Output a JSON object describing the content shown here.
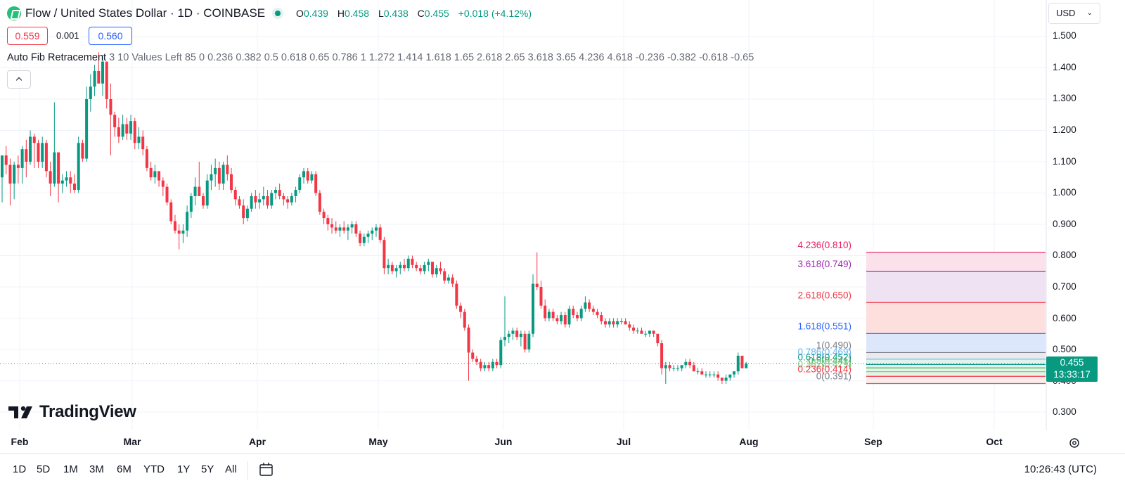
{
  "header": {
    "title": "Flow / United States Dollar · 1D · COINBASE",
    "ohlc": {
      "o_label": "O",
      "o": "0.439",
      "h_label": "H",
      "h": "0.458",
      "l_label": "L",
      "l": "0.438",
      "c_label": "C",
      "c": "0.455",
      "change": "+0.018 (+4.12%)"
    }
  },
  "price_boxes": {
    "bid": "0.559",
    "spread": "0.001",
    "ask": "0.560"
  },
  "indicator": {
    "name": "Auto Fib Retracement",
    "settings": "3 10 Values Left 85 0 0.236 0.382 0.5 0.618 0.65 0.786 1 1.272 1.414 1.618 1.65 2.618 2.65 3.618 3.65 4.236 4.618 -0.236 -0.382 -0.618 -0.65"
  },
  "currency": {
    "label": "USD",
    "chevron": "chevron-down-icon"
  },
  "y_axis": {
    "ticks": [
      "1.500",
      "1.400",
      "1.300",
      "1.200",
      "1.100",
      "1.000",
      "0.900",
      "0.800",
      "0.700",
      "0.600",
      "0.500",
      "0.400",
      "0.300"
    ]
  },
  "x_axis": {
    "ticks": [
      "Feb",
      "Mar",
      "Apr",
      "May",
      "Jun",
      "Jul",
      "Aug",
      "Sep",
      "Oct"
    ]
  },
  "last_price": {
    "value": "0.455",
    "countdown": "13:33:17"
  },
  "fib_labels": {
    "l4236": "4.236(0.810)",
    "l3618": "3.618(0.749)",
    "l2618": "2.618(0.650)",
    "l1618": "1.618(0.551)",
    "l1": "1(0.490)",
    "l0786": "0.786(0.469)",
    "l0618": "0.618(0.452)",
    "l05": "0.5(0.441)",
    "l0382": "0.382(0.429)",
    "l0236": "0.236(0.414)",
    "l0": "0(0.391)"
  },
  "colors": {
    "up": "#089981",
    "down": "#f23645",
    "grid": "#f0f3fa"
  },
  "chart_data": {
    "type": "candlestick",
    "title": "Flow / United States Dollar · 1D · COINBASE",
    "ylim": [
      0.25,
      1.55
    ],
    "x_range": [
      "Jan 29",
      "Oct 19"
    ],
    "log_scale": false,
    "grid": true,
    "ohlc_daily": [
      [
        1.05,
        1.12,
        0.97,
        1.12
      ],
      [
        1.12,
        1.15,
        1.06,
        1.09
      ],
      [
        1.09,
        1.11,
        0.96,
        1.03
      ],
      [
        1.03,
        1.1,
        0.98,
        1.09
      ],
      [
        1.09,
        1.12,
        1.03,
        1.08
      ],
      [
        1.08,
        1.15,
        1.03,
        1.14
      ],
      [
        1.14,
        1.17,
        1.05,
        1.1
      ],
      [
        1.1,
        1.2,
        1.09,
        1.18
      ],
      [
        1.18,
        1.19,
        1.08,
        1.16
      ],
      [
        1.16,
        1.17,
        1.08,
        1.1
      ],
      [
        1.1,
        1.18,
        1.08,
        1.16
      ],
      [
        1.16,
        1.17,
        1.05,
        1.07
      ],
      [
        1.07,
        1.1,
        0.99,
        1.03
      ],
      [
        1.03,
        1.29,
        1.02,
        1.13
      ],
      [
        1.13,
        1.13,
        0.97,
        1.03
      ],
      [
        1.03,
        1.06,
        1.0,
        1.04
      ],
      [
        1.04,
        1.07,
        1.02,
        1.05
      ],
      [
        1.05,
        1.07,
        1.0,
        1.03
      ],
      [
        1.03,
        1.06,
        1.0,
        1.01
      ],
      [
        1.01,
        1.18,
        1.0,
        1.16
      ],
      [
        1.16,
        1.17,
        1.1,
        1.11
      ],
      [
        1.11,
        1.34,
        1.1,
        1.3
      ],
      [
        1.3,
        1.38,
        1.26,
        1.34
      ],
      [
        1.34,
        1.41,
        1.31,
        1.39
      ],
      [
        1.39,
        1.45,
        1.35,
        1.35
      ],
      [
        1.35,
        1.44,
        1.31,
        1.42
      ],
      [
        1.42,
        1.42,
        1.27,
        1.3
      ],
      [
        1.3,
        1.35,
        1.12,
        1.25
      ],
      [
        1.25,
        1.26,
        1.18,
        1.21
      ],
      [
        1.21,
        1.24,
        1.16,
        1.18
      ],
      [
        1.18,
        1.25,
        1.17,
        1.22
      ],
      [
        1.22,
        1.24,
        1.17,
        1.19
      ],
      [
        1.19,
        1.25,
        1.17,
        1.23
      ],
      [
        1.23,
        1.24,
        1.14,
        1.16
      ],
      [
        1.16,
        1.21,
        1.14,
        1.18
      ],
      [
        1.18,
        1.2,
        1.12,
        1.14
      ],
      [
        1.14,
        1.15,
        1.07,
        1.08
      ],
      [
        1.08,
        1.1,
        1.04,
        1.05
      ],
      [
        1.05,
        1.09,
        1.03,
        1.07
      ],
      [
        1.07,
        1.07,
        1.02,
        1.04
      ],
      [
        1.04,
        1.05,
        0.99,
        1.02
      ],
      [
        1.02,
        1.03,
        0.96,
        0.97
      ],
      [
        0.97,
        0.98,
        0.9,
        0.91
      ],
      [
        0.91,
        0.93,
        0.87,
        0.88
      ],
      [
        0.88,
        0.9,
        0.82,
        0.87
      ],
      [
        0.87,
        0.9,
        0.84,
        0.88
      ],
      [
        0.88,
        0.96,
        0.86,
        0.94
      ],
      [
        0.94,
        1.0,
        0.92,
        0.99
      ],
      [
        0.99,
        1.05,
        0.96,
        1.02
      ],
      [
        1.02,
        1.1,
        0.99,
        0.99
      ],
      [
        0.99,
        1.0,
        0.95,
        0.96
      ],
      [
        0.96,
        1.06,
        0.95,
        1.04
      ],
      [
        1.04,
        1.09,
        1.01,
        1.06
      ],
      [
        1.06,
        1.11,
        1.02,
        1.08
      ],
      [
        1.08,
        1.1,
        1.01,
        1.03
      ],
      [
        1.03,
        1.1,
        1.01,
        1.09
      ],
      [
        1.09,
        1.12,
        1.04,
        1.06
      ],
      [
        1.06,
        1.08,
        1.0,
        1.01
      ],
      [
        1.01,
        1.02,
        0.96,
        0.98
      ],
      [
        0.98,
        0.99,
        0.95,
        0.96
      ],
      [
        0.96,
        0.98,
        0.9,
        0.92
      ],
      [
        0.92,
        0.96,
        0.91,
        0.95
      ],
      [
        0.95,
        1.0,
        0.94,
        0.99
      ],
      [
        0.99,
        1.01,
        0.95,
        0.97
      ],
      [
        0.97,
        1.0,
        0.95,
        0.98
      ],
      [
        0.98,
        1.02,
        0.96,
        0.99
      ],
      [
        0.99,
        1.01,
        0.95,
        0.96
      ],
      [
        0.96,
        1.01,
        0.95,
        1.0
      ],
      [
        1.0,
        1.02,
        0.98,
        1.01
      ],
      [
        1.01,
        1.03,
        0.98,
        0.99
      ],
      [
        0.99,
        1.0,
        0.96,
        0.98
      ],
      [
        0.98,
        0.99,
        0.95,
        0.97
      ],
      [
        0.97,
        1.0,
        0.96,
        0.99
      ],
      [
        0.99,
        1.02,
        0.97,
        1.01
      ],
      [
        1.01,
        1.06,
        1.0,
        1.05
      ],
      [
        1.05,
        1.08,
        1.03,
        1.07
      ],
      [
        1.07,
        1.08,
        1.03,
        1.04
      ],
      [
        1.04,
        1.07,
        1.03,
        1.06
      ],
      [
        1.06,
        1.07,
        0.99,
        1.0
      ],
      [
        1.0,
        1.01,
        0.93,
        0.94
      ],
      [
        0.94,
        0.95,
        0.9,
        0.92
      ],
      [
        0.92,
        0.93,
        0.88,
        0.9
      ],
      [
        0.9,
        0.92,
        0.87,
        0.89
      ],
      [
        0.89,
        0.91,
        0.87,
        0.88
      ],
      [
        0.88,
        0.9,
        0.86,
        0.89
      ],
      [
        0.89,
        0.91,
        0.87,
        0.88
      ],
      [
        0.88,
        0.9,
        0.85,
        0.89
      ],
      [
        0.89,
        0.91,
        0.87,
        0.9
      ],
      [
        0.9,
        0.91,
        0.86,
        0.87
      ],
      [
        0.87,
        0.88,
        0.83,
        0.84
      ],
      [
        0.84,
        0.87,
        0.83,
        0.86
      ],
      [
        0.86,
        0.88,
        0.84,
        0.87
      ],
      [
        0.87,
        0.89,
        0.85,
        0.88
      ],
      [
        0.88,
        0.9,
        0.86,
        0.89
      ],
      [
        0.89,
        0.9,
        0.84,
        0.85
      ],
      [
        0.85,
        0.86,
        0.74,
        0.76
      ],
      [
        0.76,
        0.79,
        0.74,
        0.77
      ],
      [
        0.77,
        0.78,
        0.74,
        0.75
      ],
      [
        0.75,
        0.77,
        0.73,
        0.76
      ],
      [
        0.76,
        0.78,
        0.74,
        0.77
      ],
      [
        0.77,
        0.79,
        0.75,
        0.76
      ],
      [
        0.76,
        0.8,
        0.75,
        0.79
      ],
      [
        0.79,
        0.8,
        0.76,
        0.77
      ],
      [
        0.77,
        0.78,
        0.75,
        0.76
      ],
      [
        0.76,
        0.77,
        0.74,
        0.75
      ],
      [
        0.75,
        0.78,
        0.74,
        0.77
      ],
      [
        0.77,
        0.79,
        0.75,
        0.78
      ],
      [
        0.78,
        0.78,
        0.73,
        0.74
      ],
      [
        0.74,
        0.77,
        0.73,
        0.76
      ],
      [
        0.76,
        0.78,
        0.74,
        0.75
      ],
      [
        0.75,
        0.76,
        0.71,
        0.72
      ],
      [
        0.72,
        0.74,
        0.71,
        0.73
      ],
      [
        0.73,
        0.74,
        0.7,
        0.71
      ],
      [
        0.71,
        0.72,
        0.63,
        0.64
      ],
      [
        0.64,
        0.65,
        0.6,
        0.62
      ],
      [
        0.62,
        0.63,
        0.56,
        0.57
      ],
      [
        0.57,
        0.58,
        0.4,
        0.49
      ],
      [
        0.49,
        0.5,
        0.46,
        0.47
      ],
      [
        0.47,
        0.48,
        0.45,
        0.46
      ],
      [
        0.46,
        0.47,
        0.43,
        0.44
      ],
      [
        0.44,
        0.46,
        0.43,
        0.45
      ],
      [
        0.45,
        0.46,
        0.43,
        0.44
      ],
      [
        0.44,
        0.47,
        0.43,
        0.46
      ],
      [
        0.46,
        0.47,
        0.44,
        0.45
      ],
      [
        0.45,
        0.54,
        0.44,
        0.53
      ],
      [
        0.53,
        0.67,
        0.51,
        0.54
      ],
      [
        0.54,
        0.56,
        0.52,
        0.55
      ],
      [
        0.55,
        0.57,
        0.53,
        0.56
      ],
      [
        0.56,
        0.57,
        0.53,
        0.54
      ],
      [
        0.54,
        0.56,
        0.51,
        0.55
      ],
      [
        0.55,
        0.56,
        0.49,
        0.5
      ],
      [
        0.5,
        0.56,
        0.49,
        0.55
      ],
      [
        0.55,
        0.74,
        0.54,
        0.71
      ],
      [
        0.71,
        0.81,
        0.69,
        0.7
      ],
      [
        0.7,
        0.72,
        0.63,
        0.64
      ],
      [
        0.64,
        0.66,
        0.59,
        0.6
      ],
      [
        0.6,
        0.63,
        0.59,
        0.62
      ],
      [
        0.62,
        0.63,
        0.59,
        0.6
      ],
      [
        0.6,
        0.61,
        0.58,
        0.59
      ],
      [
        0.59,
        0.62,
        0.58,
        0.61
      ],
      [
        0.61,
        0.62,
        0.57,
        0.58
      ],
      [
        0.58,
        0.64,
        0.57,
        0.63
      ],
      [
        0.63,
        0.64,
        0.6,
        0.61
      ],
      [
        0.61,
        0.62,
        0.59,
        0.6
      ],
      [
        0.6,
        0.64,
        0.59,
        0.63
      ],
      [
        0.63,
        0.67,
        0.62,
        0.65
      ],
      [
        0.65,
        0.66,
        0.62,
        0.63
      ],
      [
        0.63,
        0.64,
        0.61,
        0.62
      ],
      [
        0.62,
        0.63,
        0.6,
        0.61
      ],
      [
        0.61,
        0.62,
        0.58,
        0.59
      ],
      [
        0.59,
        0.6,
        0.57,
        0.58
      ],
      [
        0.58,
        0.6,
        0.57,
        0.59
      ],
      [
        0.59,
        0.6,
        0.57,
        0.58
      ],
      [
        0.58,
        0.6,
        0.57,
        0.59
      ],
      [
        0.59,
        0.6,
        0.58,
        0.59
      ],
      [
        0.59,
        0.6,
        0.58,
        0.58
      ],
      [
        0.58,
        0.59,
        0.56,
        0.57
      ],
      [
        0.57,
        0.58,
        0.55,
        0.56
      ],
      [
        0.56,
        0.57,
        0.55,
        0.56
      ],
      [
        0.56,
        0.57,
        0.55,
        0.55
      ],
      [
        0.55,
        0.56,
        0.54,
        0.55
      ],
      [
        0.55,
        0.56,
        0.54,
        0.56
      ],
      [
        0.56,
        0.56,
        0.54,
        0.55
      ],
      [
        0.55,
        0.55,
        0.51,
        0.52
      ],
      [
        0.52,
        0.53,
        0.42,
        0.44
      ],
      [
        0.44,
        0.46,
        0.39,
        0.45
      ],
      [
        0.45,
        0.46,
        0.43,
        0.44
      ],
      [
        0.44,
        0.45,
        0.43,
        0.44
      ],
      [
        0.44,
        0.45,
        0.43,
        0.44
      ],
      [
        0.44,
        0.45,
        0.43,
        0.45
      ],
      [
        0.45,
        0.47,
        0.44,
        0.46
      ],
      [
        0.46,
        0.47,
        0.44,
        0.45
      ],
      [
        0.45,
        0.46,
        0.43,
        0.43
      ],
      [
        0.43,
        0.44,
        0.42,
        0.43
      ],
      [
        0.43,
        0.44,
        0.42,
        0.42
      ],
      [
        0.42,
        0.43,
        0.41,
        0.42
      ],
      [
        0.42,
        0.43,
        0.41,
        0.42
      ],
      [
        0.42,
        0.43,
        0.41,
        0.42
      ],
      [
        0.42,
        0.43,
        0.4,
        0.41
      ],
      [
        0.41,
        0.41,
        0.39,
        0.4
      ],
      [
        0.4,
        0.42,
        0.39,
        0.41
      ],
      [
        0.41,
        0.42,
        0.4,
        0.42
      ],
      [
        0.42,
        0.43,
        0.41,
        0.43
      ],
      [
        0.43,
        0.49,
        0.42,
        0.48
      ],
      [
        0.48,
        0.48,
        0.44,
        0.44
      ],
      [
        0.44,
        0.46,
        0.44,
        0.455
      ]
    ],
    "fib_levels": [
      {
        "ratio": "0",
        "price": 0.391
      },
      {
        "ratio": "0.236",
        "price": 0.414
      },
      {
        "ratio": "0.382",
        "price": 0.429
      },
      {
        "ratio": "0.5",
        "price": 0.441
      },
      {
        "ratio": "0.618",
        "price": 0.452
      },
      {
        "ratio": "0.786",
        "price": 0.469
      },
      {
        "ratio": "1",
        "price": 0.49
      },
      {
        "ratio": "1.618",
        "price": 0.551
      },
      {
        "ratio": "2.618",
        "price": 0.65
      },
      {
        "ratio": "3.618",
        "price": 0.749
      },
      {
        "ratio": "4.236",
        "price": 0.81
      }
    ]
  },
  "timeframes": [
    "1D",
    "5D",
    "1M",
    "3M",
    "6M",
    "YTD",
    "1Y",
    "5Y",
    "All"
  ],
  "clock": "10:26:43 (UTC)",
  "brand": {
    "name": "TradingView"
  }
}
